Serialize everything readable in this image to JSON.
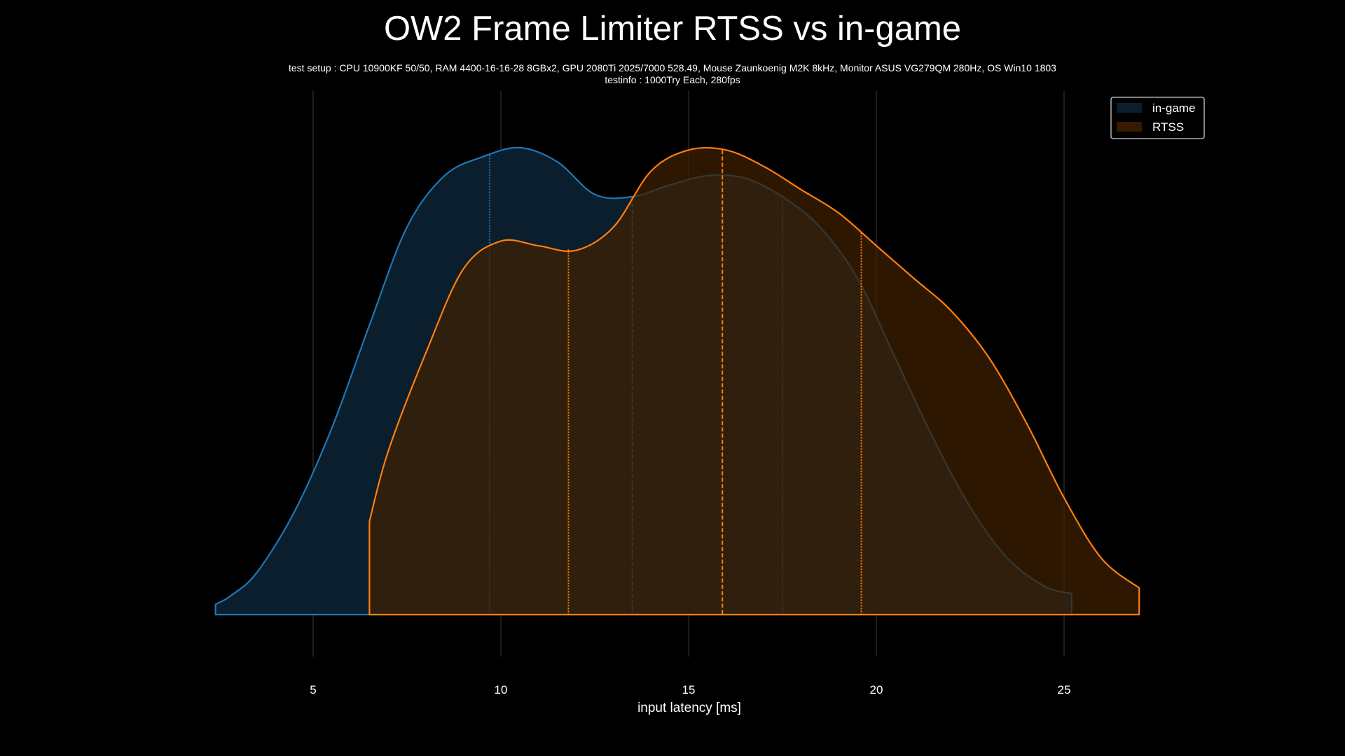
{
  "chart_data": {
    "type": "area",
    "title": "OW2 Frame Limiter RTSS vs in-game",
    "subtitle_lines": [
      "test setup : CPU 10900KF 50/50, RAM 4400-16-16-28 8GBx2, GPU 2080Ti 2025/7000 528.49, Mouse Zaunkoenig M2K 8kHz, Monitor ASUS VG279QM 280Hz, OS Win10 1803",
      "testinfo : 1000Try Each, 280fps"
    ],
    "xlabel": "input latency [ms]",
    "ylabel": "",
    "xlim": [
      0,
      30
    ],
    "x_ticks": [
      5,
      10,
      15,
      20,
      25
    ],
    "grid": true,
    "legend_position": "top-right",
    "series": [
      {
        "name": "in-game",
        "line_color": "#1f77b4",
        "fill_color": "#0a1e2d",
        "x": [
          2.4,
          2.8,
          3.5,
          4.5,
          5.5,
          6.5,
          7.5,
          8.5,
          9.5,
          10.5,
          11.5,
          12.5,
          13.5,
          14.5,
          15.5,
          16.5,
          17.5,
          18.5,
          19.5,
          20.5,
          21.5,
          22.5,
          23.5,
          24.5,
          25.2
        ],
        "density": [
          0.022,
          0.04,
          0.09,
          0.22,
          0.4,
          0.62,
          0.83,
          0.94,
          0.98,
          1.0,
          0.97,
          0.9,
          0.895,
          0.92,
          0.94,
          0.935,
          0.895,
          0.83,
          0.72,
          0.55,
          0.38,
          0.23,
          0.12,
          0.06,
          0.045
        ],
        "quartiles": [
          9.7,
          13.5,
          17.5
        ]
      },
      {
        "name": "RTSS",
        "line_color": "#ff7f0e",
        "fill_color": "#402000",
        "x": [
          6.5,
          7.0,
          8.0,
          9.0,
          10.0,
          11.0,
          12.0,
          13.0,
          14.0,
          15.0,
          16.0,
          17.0,
          18.0,
          19.0,
          20.0,
          21.0,
          22.0,
          23.0,
          24.0,
          25.0,
          26.0,
          27.0
        ],
        "density": [
          0.2,
          0.35,
          0.56,
          0.74,
          0.8,
          0.79,
          0.78,
          0.83,
          0.95,
          0.995,
          0.995,
          0.96,
          0.91,
          0.86,
          0.79,
          0.72,
          0.65,
          0.55,
          0.41,
          0.25,
          0.12,
          0.057
        ],
        "quartiles": [
          11.8,
          15.9,
          19.6
        ]
      }
    ]
  }
}
